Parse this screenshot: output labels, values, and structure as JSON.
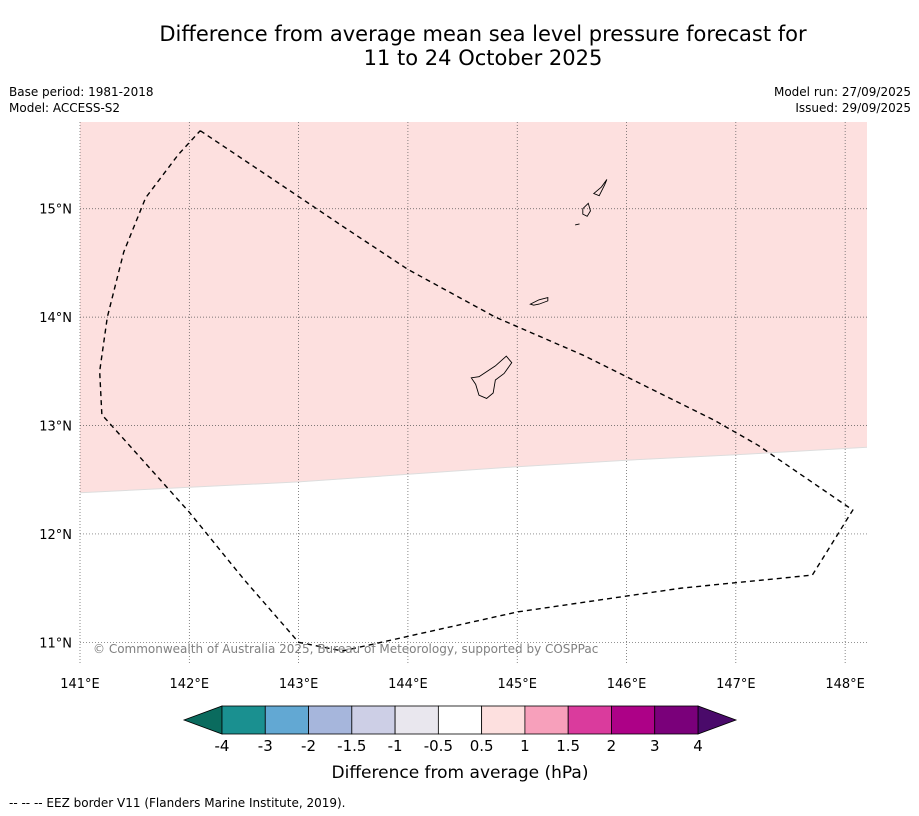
{
  "title": {
    "line1": "Difference from average mean sea level pressure forecast for",
    "line2": "11 to 24 October 2025"
  },
  "meta": {
    "base_period": "Base period: 1981-2018",
    "model": "Model: ACCESS-S2",
    "model_run": "Model run: 27/09/2025",
    "issued": "Issued: 29/09/2025"
  },
  "map": {
    "lon_range": [
      141.0,
      148.2
    ],
    "lat_range": [
      10.8,
      15.8
    ],
    "lon_ticks": [
      141,
      142,
      143,
      144,
      145,
      146,
      147,
      148
    ],
    "lon_labels": [
      "141°E",
      "142°E",
      "143°E",
      "144°E",
      "145°E",
      "146°E",
      "147°E",
      "148°E"
    ],
    "lat_ticks": [
      15,
      14,
      13,
      12,
      11
    ],
    "lat_labels": [
      "15°N",
      "14°N",
      "13°N",
      "12°N",
      "11°N"
    ],
    "copyright": "© Commonwealth of Australia 2025, Bureau of Meteorology, supported by COSPPac",
    "anomaly_region": {
      "category": "0.5 to 1 hPa",
      "color": "#fde0df",
      "southern_boundary": [
        [
          141.0,
          12.38
        ],
        [
          143.0,
          12.48
        ],
        [
          145.0,
          12.62
        ],
        [
          146.0,
          12.68
        ],
        [
          147.0,
          12.73
        ],
        [
          148.2,
          12.8
        ]
      ]
    },
    "eez_border": [
      [
        142.1,
        15.72
      ],
      [
        142.9,
        15.18
      ],
      [
        143.4,
        14.84
      ],
      [
        144.0,
        14.44
      ],
      [
        144.4,
        14.22
      ],
      [
        144.8,
        14.0
      ],
      [
        145.6,
        13.65
      ],
      [
        146.2,
        13.35
      ],
      [
        146.8,
        13.05
      ],
      [
        147.2,
        12.82
      ],
      [
        148.07,
        12.22
      ],
      [
        147.7,
        11.62
      ],
      [
        146.5,
        11.5
      ],
      [
        145.0,
        11.28
      ],
      [
        143.4,
        10.92
      ],
      [
        143.0,
        11.0
      ],
      [
        142.5,
        11.58
      ],
      [
        142.0,
        12.2
      ],
      [
        141.6,
        12.65
      ],
      [
        141.2,
        13.1
      ],
      [
        141.18,
        13.5
      ],
      [
        141.25,
        14.0
      ],
      [
        141.4,
        14.6
      ],
      [
        141.6,
        15.1
      ],
      [
        141.9,
        15.5
      ],
      [
        142.1,
        15.72
      ]
    ],
    "islands": [
      {
        "name": "Guam",
        "coords": [
          [
            144.65,
            13.45
          ],
          [
            144.8,
            13.55
          ],
          [
            144.9,
            13.64
          ],
          [
            144.95,
            13.58
          ],
          [
            144.88,
            13.48
          ],
          [
            144.8,
            13.42
          ],
          [
            144.78,
            13.3
          ],
          [
            144.72,
            13.25
          ],
          [
            144.65,
            13.28
          ],
          [
            144.62,
            13.38
          ],
          [
            144.58,
            13.44
          ],
          [
            144.65,
            13.45
          ]
        ]
      },
      {
        "name": "Rota",
        "coords": [
          [
            145.12,
            14.12
          ],
          [
            145.2,
            14.16
          ],
          [
            145.28,
            14.18
          ],
          [
            145.28,
            14.15
          ],
          [
            145.2,
            14.12
          ],
          [
            145.15,
            14.11
          ],
          [
            145.12,
            14.12
          ]
        ]
      },
      {
        "name": "Tinian",
        "coords": [
          [
            145.6,
            15.0
          ],
          [
            145.65,
            15.05
          ],
          [
            145.67,
            14.98
          ],
          [
            145.64,
            14.93
          ],
          [
            145.6,
            14.95
          ],
          [
            145.6,
            15.0
          ]
        ]
      },
      {
        "name": "Saipan",
        "coords": [
          [
            145.7,
            15.14
          ],
          [
            145.77,
            15.2
          ],
          [
            145.82,
            15.27
          ],
          [
            145.8,
            15.22
          ],
          [
            145.75,
            15.12
          ],
          [
            145.7,
            15.14
          ]
        ]
      },
      {
        "name": "Aguijan",
        "coords": [
          [
            145.53,
            14.85
          ],
          [
            145.57,
            14.86
          ]
        ]
      }
    ]
  },
  "colorbar": {
    "label": "Difference from average (hPa)",
    "tick_labels": [
      "-4",
      "-3",
      "-2",
      "-1.5",
      "-1",
      "-0.5",
      "0.5",
      "1",
      "1.5",
      "2",
      "3",
      "4"
    ],
    "under_color": "#0a6b5e",
    "over_color": "#4a0a6a",
    "colors": [
      "#1a9090",
      "#62a8d3",
      "#a6b6dc",
      "#cdcfe6",
      "#e9e7ee",
      "#ffffff",
      "#fde0df",
      "#f7a0bb",
      "#da3b9d",
      "#ad0187",
      "#7a007a"
    ]
  },
  "footnote": "--  --  -- EEZ border V11 (Flanders Marine Institute, 2019)."
}
